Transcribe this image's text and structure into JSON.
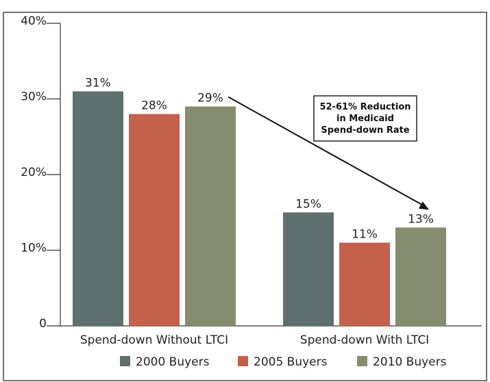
{
  "chart_data": {
    "type": "bar",
    "categories": [
      "Spend-down Without LTCI",
      "Spend-down With LTCI"
    ],
    "series": [
      {
        "name": "2000 Buyers",
        "values": [
          31,
          15
        ],
        "color": "#5e706e"
      },
      {
        "name": "2005 Buyers",
        "values": [
          28,
          11
        ],
        "color": "#c4614a"
      },
      {
        "name": "2010 Buyers",
        "values": [
          29,
          13
        ],
        "color": "#868c6e"
      }
    ],
    "value_labels": [
      [
        "31%",
        "15%"
      ],
      [
        "28%",
        "11%"
      ],
      [
        "29%",
        "13%"
      ]
    ],
    "ylim": [
      0,
      40
    ],
    "yticks": [
      0,
      10,
      20,
      30,
      40
    ],
    "ytick_labels": [
      "0",
      "10%",
      "20%",
      "30%",
      "40%"
    ],
    "grid": false,
    "legend_position": "bottom",
    "annotation": {
      "lines": [
        "52-61% Reduction",
        "in Medicaid",
        "Spend-down Rate"
      ],
      "arrow_from": {
        "series": 2,
        "category": 0
      },
      "arrow_to": {
        "series": 2,
        "category": 1
      }
    },
    "colors": {
      "border": "#444444",
      "axis": "#333333",
      "text": "#222222"
    }
  }
}
